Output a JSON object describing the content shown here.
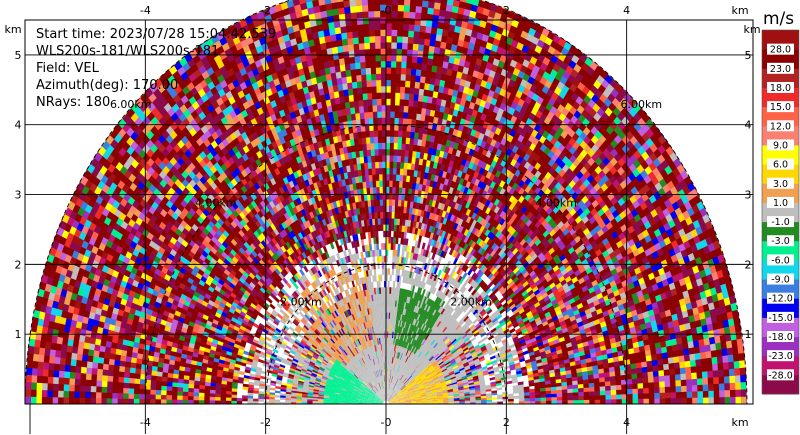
{
  "chart_data": {
    "type": "ppi-radar",
    "info": {
      "start_time": "Start time: 2023/07/28 15:04:42.539",
      "scan": "WLS200s-181/WLS200s-181",
      "field": "Field: VEL",
      "azimuth": "Azimuth(deg): 170.00",
      "nrays": "NRays: 180"
    },
    "x_unit": "km",
    "y_unit": "km",
    "xlim": [
      -6.0,
      6.1
    ],
    "ylim": [
      0.0,
      5.5
    ],
    "x_ticks": [
      -4,
      -2,
      0,
      2,
      4
    ],
    "x_tick_labels": [
      "-4",
      "-2",
      "-0",
      "2",
      "4"
    ],
    "y_ticks": [
      1,
      2,
      3,
      4,
      5
    ],
    "y_tick_labels": [
      "1",
      "2",
      "3",
      "4",
      "5"
    ],
    "grid": true,
    "range_rings": [
      {
        "range_km": 2.0,
        "label": "2.00km"
      },
      {
        "range_km": 4.0,
        "label": "4.00km"
      },
      {
        "range_km": 6.0,
        "label": "6.00km"
      }
    ],
    "max_range_km": 6.0,
    "colorbar": {
      "unit": "m/s",
      "levels": [
        -28.0,
        -23.0,
        -18.0,
        -15.0,
        -12.0,
        -9.0,
        -6.0,
        -3.0,
        -1.0,
        1.0,
        3.0,
        6.0,
        9.0,
        12.0,
        15.0,
        18.0,
        23.0,
        28.0
      ],
      "level_labels": [
        "-28.0",
        "-23.0",
        "-18.0",
        "-15.0",
        "-12.0",
        "-9.0",
        "-6.0",
        "-3.0",
        "-1.0",
        "1.0",
        "3.0",
        "6.0",
        "9.0",
        "12.0",
        "15.0",
        "18.0",
        "23.0",
        "28.0"
      ],
      "colors": [
        "#8b0a4a",
        "#c0136f",
        "#9b30c0",
        "#c060e0",
        "#0000ee",
        "#3a7fe0",
        "#10d8e8",
        "#00f090",
        "#228b22",
        "#bebebe",
        "#f0a050",
        "#ffd700",
        "#ffff00",
        "#fa8072",
        "#ff6347",
        "#ee2a2a",
        "#b22222",
        "#8b0000",
        "#a01010"
      ]
    }
  }
}
